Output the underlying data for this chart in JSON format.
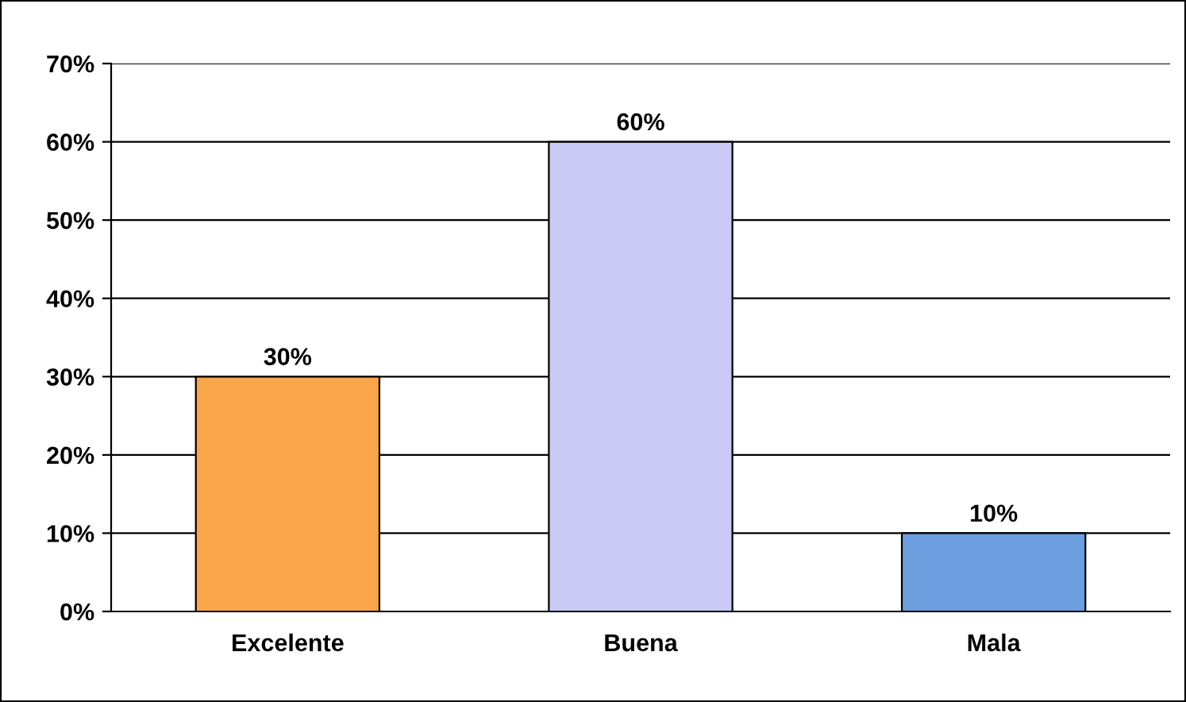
{
  "chart_data": {
    "type": "bar",
    "categories": [
      "Excelente",
      "Buena",
      "Mala"
    ],
    "values": [
      30,
      60,
      10
    ],
    "value_labels": [
      "30%",
      "60%",
      "10%"
    ],
    "colors": [
      "#f9a64a",
      "#c9c9f5",
      "#6d9ee0"
    ],
    "ylim": [
      0,
      70
    ],
    "yticks": [
      {
        "value": 0,
        "label": "0%"
      },
      {
        "value": 10,
        "label": "10%"
      },
      {
        "value": 20,
        "label": "20%"
      },
      {
        "value": 30,
        "label": "30%"
      },
      {
        "value": 40,
        "label": "40%"
      },
      {
        "value": 50,
        "label": "50%"
      },
      {
        "value": 60,
        "label": "60%"
      },
      {
        "value": 70,
        "label": "70%"
      }
    ],
    "grid": "y",
    "legend": false
  }
}
